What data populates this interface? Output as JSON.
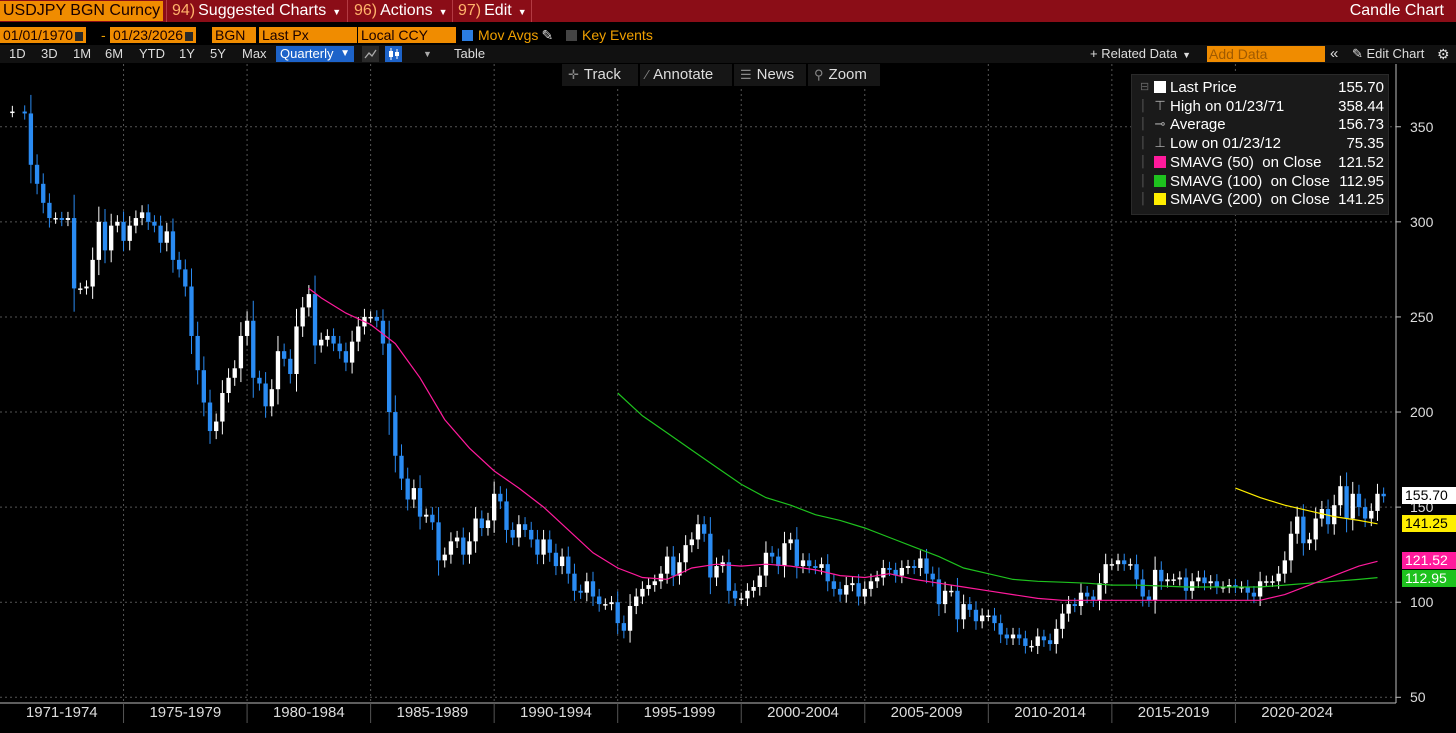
{
  "topbar": {
    "ticker": "USDJPY BGN Curncy",
    "menus": [
      {
        "num": "94)",
        "label": "Suggested Charts"
      },
      {
        "num": "96)",
        "label": "Actions"
      },
      {
        "num": "97)",
        "label": "Edit"
      }
    ],
    "chart_type": "Candle Chart"
  },
  "settings": {
    "start_date": "01/01/1970",
    "end_date": "01/23/2026",
    "source": "BGN",
    "field": "Last Px",
    "currency": "Local CCY",
    "mov_avgs_label": "Mov Avgs",
    "key_events_label": "Key Events",
    "mov_avgs_checked": true,
    "key_events_checked": false
  },
  "periods": {
    "buttons": [
      "1D",
      "3D",
      "1M",
      "6M",
      "YTD",
      "1Y",
      "5Y",
      "Max"
    ],
    "frequency": "Quarterly",
    "table_label": "Table",
    "related_data": "Related Data",
    "add_data_placeholder": "Add Data",
    "edit_chart": "Edit Chart"
  },
  "tools": {
    "track": "Track",
    "annotate": "Annotate",
    "news": "News",
    "zoom": "Zoom"
  },
  "legend": [
    {
      "label": "Last Price",
      "value": "155.70",
      "marker": "square",
      "color": "#ffffff"
    },
    {
      "label": "High on 01/23/71",
      "value": "358.44",
      "marker": "high",
      "color": "#aaaaaa"
    },
    {
      "label": "Average",
      "value": "156.73",
      "marker": "avg",
      "color": "#aaaaaa"
    },
    {
      "label": "Low on 01/23/12",
      "value": "75.35",
      "marker": "low",
      "color": "#aaaaaa"
    },
    {
      "label": "SMAVG (50)  on Close",
      "value": "121.52",
      "marker": "square",
      "color": "#ff1a9c"
    },
    {
      "label": "SMAVG (100)  on Close",
      "value": "112.95",
      "marker": "square",
      "color": "#1ec21e"
    },
    {
      "label": "SMAVG (200)  on Close",
      "value": "141.25",
      "marker": "square",
      "color": "#ffee00"
    }
  ],
  "badges": [
    {
      "value": "155.70",
      "bg": "#ffffff",
      "fg": "#000000",
      "price": 155.7
    },
    {
      "value": "141.25",
      "bg": "#ffee00",
      "fg": "#000000",
      "price": 141.25
    },
    {
      "value": "121.52",
      "bg": "#ff1a9c",
      "fg": "#ffffff",
      "price": 121.52
    },
    {
      "value": "112.95",
      "bg": "#1ec21e",
      "fg": "#ffffff",
      "price": 112.95
    }
  ],
  "chart_data": {
    "type": "candlestick",
    "frequency": "Quarterly",
    "y_ticks": [
      50,
      100,
      150,
      200,
      250,
      300,
      350
    ],
    "ylim": [
      47,
      383
    ],
    "xlim": [
      1970.0,
      2026.5
    ],
    "x_labels": [
      "1971-1974",
      "1975-1979",
      "1980-1984",
      "1985-1989",
      "1990-1994",
      "1995-1999",
      "2000-2004",
      "2005-2009",
      "2010-2014",
      "2015-2019",
      "2020-2024"
    ],
    "x_label_ranges": [
      [
        1970.0,
        1975.0
      ],
      [
        1975.0,
        1980.0
      ],
      [
        1980.0,
        1985.0
      ],
      [
        1985.0,
        1990.0
      ],
      [
        1990.0,
        1995.0
      ],
      [
        1995.0,
        2000.0
      ],
      [
        2000.0,
        2005.0
      ],
      [
        2005.0,
        2010.0
      ],
      [
        2010.0,
        2015.0
      ],
      [
        2015.0,
        2020.0
      ],
      [
        2020.0,
        2025.0
      ]
    ],
    "grid": true,
    "up_color": "#ffffff",
    "down_color": "#2a8bf2",
    "close_path": [
      [
        1970.0,
        358
      ],
      [
        1970.5,
        358
      ],
      [
        1971.0,
        357
      ],
      [
        1971.25,
        330
      ],
      [
        1971.5,
        320
      ],
      [
        1971.75,
        310
      ],
      [
        1972.0,
        302
      ],
      [
        1972.25,
        302
      ],
      [
        1972.5,
        301
      ],
      [
        1972.75,
        302
      ],
      [
        1973.0,
        265
      ],
      [
        1973.25,
        265
      ],
      [
        1973.5,
        266
      ],
      [
        1973.75,
        280
      ],
      [
        1974.0,
        300
      ],
      [
        1974.25,
        285
      ],
      [
        1974.5,
        298
      ],
      [
        1974.75,
        300
      ],
      [
        1975.0,
        290
      ],
      [
        1975.25,
        298
      ],
      [
        1975.5,
        302
      ],
      [
        1975.75,
        305
      ],
      [
        1976.0,
        300
      ],
      [
        1976.25,
        298
      ],
      [
        1976.5,
        289
      ],
      [
        1976.75,
        295
      ],
      [
        1977.0,
        280
      ],
      [
        1977.25,
        275
      ],
      [
        1977.5,
        266
      ],
      [
        1977.75,
        240
      ],
      [
        1978.0,
        222
      ],
      [
        1978.25,
        205
      ],
      [
        1978.5,
        190
      ],
      [
        1978.75,
        195
      ],
      [
        1979.0,
        210
      ],
      [
        1979.25,
        218
      ],
      [
        1979.5,
        223
      ],
      [
        1979.75,
        240
      ],
      [
        1980.0,
        248
      ],
      [
        1980.25,
        218
      ],
      [
        1980.5,
        215
      ],
      [
        1980.75,
        203
      ],
      [
        1981.0,
        212
      ],
      [
        1981.25,
        232
      ],
      [
        1981.5,
        228
      ],
      [
        1981.75,
        220
      ],
      [
        1982.0,
        245
      ],
      [
        1982.25,
        255
      ],
      [
        1982.5,
        262
      ],
      [
        1982.75,
        235
      ],
      [
        1983.0,
        238
      ],
      [
        1983.25,
        240
      ],
      [
        1983.5,
        236
      ],
      [
        1983.75,
        232
      ],
      [
        1984.0,
        226
      ],
      [
        1984.25,
        237
      ],
      [
        1984.5,
        245
      ],
      [
        1984.75,
        250
      ],
      [
        1985.0,
        250
      ],
      [
        1985.25,
        248
      ],
      [
        1985.5,
        236
      ],
      [
        1985.75,
        200
      ],
      [
        1986.0,
        177
      ],
      [
        1986.25,
        165
      ],
      [
        1986.5,
        154
      ],
      [
        1986.75,
        160
      ],
      [
        1987.0,
        145
      ],
      [
        1987.25,
        146
      ],
      [
        1987.5,
        142
      ],
      [
        1987.75,
        122
      ],
      [
        1988.0,
        125
      ],
      [
        1988.25,
        132
      ],
      [
        1988.5,
        134
      ],
      [
        1988.75,
        125
      ],
      [
        1989.0,
        132
      ],
      [
        1989.25,
        144
      ],
      [
        1989.5,
        139
      ],
      [
        1989.75,
        143
      ],
      [
        1990.0,
        157
      ],
      [
        1990.25,
        153
      ],
      [
        1990.5,
        138
      ],
      [
        1990.75,
        134
      ],
      [
        1991.0,
        141
      ],
      [
        1991.25,
        138
      ],
      [
        1991.5,
        133
      ],
      [
        1991.75,
        125
      ],
      [
        1992.0,
        133
      ],
      [
        1992.25,
        126
      ],
      [
        1992.5,
        119
      ],
      [
        1992.75,
        124
      ],
      [
        1993.0,
        115
      ],
      [
        1993.25,
        106
      ],
      [
        1993.5,
        105
      ],
      [
        1993.75,
        111
      ],
      [
        1994.0,
        103
      ],
      [
        1994.25,
        99
      ],
      [
        1994.5,
        99
      ],
      [
        1994.75,
        100
      ],
      [
        1995.0,
        89
      ],
      [
        1995.25,
        85
      ],
      [
        1995.5,
        98
      ],
      [
        1995.75,
        103
      ],
      [
        1996.0,
        107
      ],
      [
        1996.25,
        109
      ],
      [
        1996.5,
        111
      ],
      [
        1996.75,
        115
      ],
      [
        1997.0,
        124
      ],
      [
        1997.25,
        114
      ],
      [
        1997.5,
        121
      ],
      [
        1997.75,
        130
      ],
      [
        1998.0,
        133
      ],
      [
        1998.25,
        141
      ],
      [
        1998.5,
        136
      ],
      [
        1998.75,
        113
      ],
      [
        1999.0,
        119
      ],
      [
        1999.25,
        121
      ],
      [
        1999.5,
        106
      ],
      [
        1999.75,
        102
      ],
      [
        2000.0,
        102
      ],
      [
        2000.25,
        106
      ],
      [
        2000.5,
        108
      ],
      [
        2000.75,
        114
      ],
      [
        2001.0,
        126
      ],
      [
        2001.25,
        124
      ],
      [
        2001.5,
        119
      ],
      [
        2001.75,
        131
      ],
      [
        2002.0,
        133
      ],
      [
        2002.25,
        119
      ],
      [
        2002.5,
        122
      ],
      [
        2002.75,
        119
      ],
      [
        2003.0,
        118
      ],
      [
        2003.25,
        120
      ],
      [
        2003.5,
        111
      ],
      [
        2003.75,
        107
      ],
      [
        2004.0,
        104
      ],
      [
        2004.25,
        109
      ],
      [
        2004.5,
        110
      ],
      [
        2004.75,
        103
      ],
      [
        2005.0,
        107
      ],
      [
        2005.25,
        111
      ],
      [
        2005.5,
        113
      ],
      [
        2005.75,
        118
      ],
      [
        2006.0,
        117
      ],
      [
        2006.25,
        114
      ],
      [
        2006.5,
        118
      ],
      [
        2006.75,
        119
      ],
      [
        2007.0,
        118
      ],
      [
        2007.25,
        123
      ],
      [
        2007.5,
        115
      ],
      [
        2007.75,
        112
      ],
      [
        2008.0,
        99
      ],
      [
        2008.25,
        106
      ],
      [
        2008.5,
        106
      ],
      [
        2008.75,
        91
      ],
      [
        2009.0,
        99
      ],
      [
        2009.25,
        96
      ],
      [
        2009.5,
        90
      ],
      [
        2009.75,
        93
      ],
      [
        2010.0,
        93
      ],
      [
        2010.25,
        89
      ],
      [
        2010.5,
        83
      ],
      [
        2010.75,
        81
      ],
      [
        2011.0,
        83
      ],
      [
        2011.25,
        81
      ],
      [
        2011.5,
        77
      ],
      [
        2011.75,
        77
      ],
      [
        2012.0,
        82
      ],
      [
        2012.25,
        80
      ],
      [
        2012.5,
        78
      ],
      [
        2012.75,
        86
      ],
      [
        2013.0,
        94
      ],
      [
        2013.25,
        99
      ],
      [
        2013.5,
        98
      ],
      [
        2013.75,
        105
      ],
      [
        2014.0,
        103
      ],
      [
        2014.25,
        101
      ],
      [
        2014.5,
        110
      ],
      [
        2014.75,
        120
      ],
      [
        2015.0,
        120
      ],
      [
        2015.25,
        122
      ],
      [
        2015.5,
        120
      ],
      [
        2015.75,
        120
      ],
      [
        2016.0,
        112
      ],
      [
        2016.25,
        103
      ],
      [
        2016.5,
        101
      ],
      [
        2016.75,
        117
      ],
      [
        2017.0,
        111
      ],
      [
        2017.25,
        112
      ],
      [
        2017.5,
        112
      ],
      [
        2017.75,
        113
      ],
      [
        2018.0,
        106
      ],
      [
        2018.25,
        111
      ],
      [
        2018.5,
        113
      ],
      [
        2018.75,
        110
      ],
      [
        2019.0,
        111
      ],
      [
        2019.25,
        108
      ],
      [
        2019.5,
        108
      ],
      [
        2019.75,
        109
      ],
      [
        2020.0,
        108
      ],
      [
        2020.25,
        108
      ],
      [
        2020.5,
        105
      ],
      [
        2020.75,
        103
      ],
      [
        2021.0,
        111
      ],
      [
        2021.25,
        111
      ],
      [
        2021.5,
        111
      ],
      [
        2021.75,
        115
      ],
      [
        2022.0,
        122
      ],
      [
        2022.25,
        136
      ],
      [
        2022.5,
        145
      ],
      [
        2022.75,
        131
      ],
      [
        2023.0,
        133
      ],
      [
        2023.25,
        144
      ],
      [
        2023.5,
        149
      ],
      [
        2023.75,
        141
      ],
      [
        2024.0,
        151
      ],
      [
        2024.25,
        161
      ],
      [
        2024.5,
        144
      ],
      [
        2024.75,
        157
      ],
      [
        2025.0,
        150
      ],
      [
        2025.25,
        144
      ],
      [
        2025.5,
        148
      ],
      [
        2025.75,
        157
      ],
      [
        2026.0,
        155.7
      ]
    ],
    "sma50": [
      [
        1982.5,
        265
      ],
      [
        1983.0,
        260
      ],
      [
        1984.0,
        252
      ],
      [
        1985.0,
        246
      ],
      [
        1986.0,
        236
      ],
      [
        1987.0,
        218
      ],
      [
        1988.0,
        196
      ],
      [
        1989.0,
        181
      ],
      [
        1990.0,
        169
      ],
      [
        1991.0,
        160
      ],
      [
        1992.0,
        150
      ],
      [
        1993.0,
        138
      ],
      [
        1994.0,
        126
      ],
      [
        1995.0,
        118
      ],
      [
        1996.0,
        113
      ],
      [
        1997.0,
        112
      ],
      [
        1998.0,
        118
      ],
      [
        1999.0,
        120
      ],
      [
        2000.0,
        119
      ],
      [
        2001.0,
        120
      ],
      [
        2002.0,
        119
      ],
      [
        2003.0,
        117
      ],
      [
        2004.0,
        114
      ],
      [
        2005.0,
        113
      ],
      [
        2006.0,
        115
      ],
      [
        2007.0,
        112
      ],
      [
        2008.0,
        110
      ],
      [
        2009.0,
        108
      ],
      [
        2010.0,
        106
      ],
      [
        2011.0,
        104
      ],
      [
        2012.0,
        102
      ],
      [
        2013.0,
        101
      ],
      [
        2014.0,
        101
      ],
      [
        2015.0,
        101
      ],
      [
        2016.0,
        101
      ],
      [
        2017.0,
        101
      ],
      [
        2018.0,
        101
      ],
      [
        2019.0,
        101
      ],
      [
        2020.0,
        101
      ],
      [
        2021.0,
        101
      ],
      [
        2022.0,
        104
      ],
      [
        2023.0,
        109
      ],
      [
        2024.0,
        114
      ],
      [
        2025.0,
        119
      ],
      [
        2025.75,
        121.52
      ]
    ],
    "sma100": [
      [
        1995.0,
        210
      ],
      [
        1996.0,
        198
      ],
      [
        1997.0,
        189
      ],
      [
        1998.0,
        180
      ],
      [
        1999.0,
        171
      ],
      [
        2000.0,
        162
      ],
      [
        2001.0,
        155
      ],
      [
        2002.0,
        151
      ],
      [
        2003.0,
        146
      ],
      [
        2004.0,
        143
      ],
      [
        2005.0,
        139
      ],
      [
        2006.0,
        134
      ],
      [
        2007.0,
        129
      ],
      [
        2008.0,
        124
      ],
      [
        2009.0,
        118
      ],
      [
        2010.0,
        115
      ],
      [
        2011.0,
        112
      ],
      [
        2012.0,
        111
      ],
      [
        2013.0,
        110.5
      ],
      [
        2014.0,
        110
      ],
      [
        2015.0,
        109
      ],
      [
        2016.0,
        109
      ],
      [
        2017.0,
        108.5
      ],
      [
        2018.0,
        108
      ],
      [
        2019.0,
        108
      ],
      [
        2020.0,
        108
      ],
      [
        2021.0,
        108
      ],
      [
        2022.0,
        109
      ],
      [
        2023.0,
        110
      ],
      [
        2024.0,
        111
      ],
      [
        2025.0,
        112
      ],
      [
        2025.75,
        112.95
      ]
    ],
    "sma200": [
      [
        2020.0,
        160
      ],
      [
        2021.0,
        155
      ],
      [
        2022.0,
        151
      ],
      [
        2023.0,
        148
      ],
      [
        2024.0,
        145
      ],
      [
        2025.0,
        143
      ],
      [
        2025.75,
        141.25
      ]
    ]
  }
}
